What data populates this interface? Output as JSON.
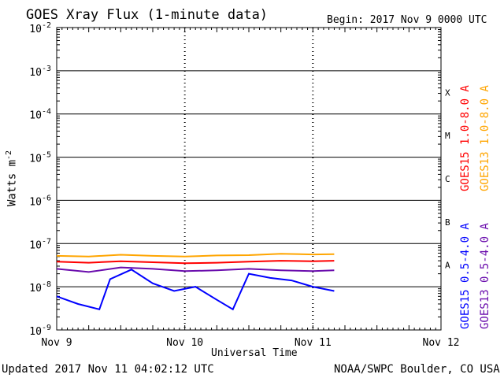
{
  "header": {
    "title": "GOES Xray Flux (1-minute data)",
    "begin_label": "Begin:  2017 Nov 9 0000 UTC"
  },
  "footer": {
    "updated": "Updated 2017 Nov 11 04:02:12 UTC",
    "source": "NOAA/SWPC Boulder, CO USA"
  },
  "chart_data": {
    "type": "line",
    "title": "GOES Xray Flux (1-minute data)",
    "xlabel": "Universal Time",
    "ylabel": "Watts m",
    "ylabel_superscript": "-2",
    "y_scale": "log",
    "ylim": [
      1e-09,
      0.01
    ],
    "xlim_days": [
      "2017-11-09",
      "2017-11-12"
    ],
    "x_ticks": [
      "Nov 9",
      "Nov 10",
      "Nov 11",
      "Nov 12"
    ],
    "y_ticks": [
      {
        "base": "10",
        "exp": "-9"
      },
      {
        "base": "10",
        "exp": "-8"
      },
      {
        "base": "10",
        "exp": "-7"
      },
      {
        "base": "10",
        "exp": "-6"
      },
      {
        "base": "10",
        "exp": "-5"
      },
      {
        "base": "10",
        "exp": "-4"
      },
      {
        "base": "10",
        "exp": "-3"
      },
      {
        "base": "10",
        "exp": "-2"
      }
    ],
    "flare_classes": [
      "A",
      "B",
      "C",
      "M",
      "X"
    ],
    "grid": "horizontal at decades",
    "legend_position": "right, vertical",
    "data_end": "2017-11-11 04:00",
    "series": [
      {
        "name": "GOES15 1.0-8.0 A",
        "color": "#ff0000",
        "x": [
          "2017-11-09 00:00",
          "2017-11-09 06:00",
          "2017-11-09 12:00",
          "2017-11-09 18:00",
          "2017-11-10 00:00",
          "2017-11-10 06:00",
          "2017-11-10 12:00",
          "2017-11-10 18:00",
          "2017-11-11 00:00",
          "2017-11-11 04:00"
        ],
        "y": [
          3.8e-08,
          3.6e-08,
          3.9e-08,
          3.7e-08,
          3.5e-08,
          3.6e-08,
          3.8e-08,
          4e-08,
          3.9e-08,
          4e-08
        ]
      },
      {
        "name": "GOES13 1.0-8.0 A",
        "color": "#ffa500",
        "x": [
          "2017-11-09 00:00",
          "2017-11-09 06:00",
          "2017-11-09 12:00",
          "2017-11-09 18:00",
          "2017-11-10 00:00",
          "2017-11-10 06:00",
          "2017-11-10 12:00",
          "2017-11-10 18:00",
          "2017-11-11 00:00",
          "2017-11-11 04:00"
        ],
        "y": [
          5.2e-08,
          5e-08,
          5.5e-08,
          5.2e-08,
          5e-08,
          5.3e-08,
          5.4e-08,
          5.8e-08,
          5.6e-08,
          5.7e-08
        ]
      },
      {
        "name": "GOES15 0.5-4.0 A",
        "color": "#0000ff",
        "x": [
          "2017-11-09 00:00",
          "2017-11-09 04:00",
          "2017-11-09 08:00",
          "2017-11-09 10:00",
          "2017-11-09 14:00",
          "2017-11-09 18:00",
          "2017-11-09 22:00",
          "2017-11-10 02:00",
          "2017-11-10 06:00",
          "2017-11-10 09:00",
          "2017-11-10 12:00",
          "2017-11-10 16:00",
          "2017-11-10 20:00",
          "2017-11-11 00:00",
          "2017-11-11 04:00"
        ],
        "y": [
          6e-09,
          4e-09,
          3e-09,
          1.5e-08,
          2.5e-08,
          1.2e-08,
          8e-09,
          1e-08,
          5e-09,
          3e-09,
          2e-08,
          1.6e-08,
          1.4e-08,
          1e-08,
          8e-09
        ]
      },
      {
        "name": "GOES13 0.5-4.0 A",
        "color": "#6a0dad",
        "x": [
          "2017-11-09 00:00",
          "2017-11-09 06:00",
          "2017-11-09 12:00",
          "2017-11-09 18:00",
          "2017-11-10 00:00",
          "2017-11-10 06:00",
          "2017-11-10 12:00",
          "2017-11-10 18:00",
          "2017-11-11 00:00",
          "2017-11-11 04:00"
        ],
        "y": [
          2.6e-08,
          2.2e-08,
          2.8e-08,
          2.6e-08,
          2.3e-08,
          2.4e-08,
          2.6e-08,
          2.4e-08,
          2.3e-08,
          2.4e-08
        ]
      }
    ]
  }
}
